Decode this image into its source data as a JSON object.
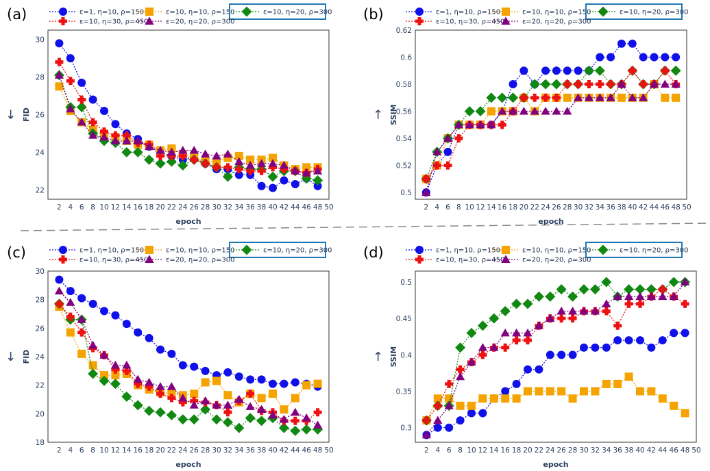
{
  "figure": {
    "series_styles": [
      {
        "color": "#1010e8",
        "marker": "circle"
      },
      {
        "color": "#f5a300",
        "marker": "square"
      },
      {
        "color": "#118811",
        "marker": "diamond"
      },
      {
        "color": "#ee1111",
        "marker": "cross"
      },
      {
        "color": "#800080",
        "marker": "triangle-up"
      }
    ],
    "highlight_box_color": "#1f77b4",
    "divider_color": "#888888"
  },
  "chart_data": [
    {
      "panel": "(a)",
      "type": "line",
      "ylabel": "FID",
      "xlabel": "epoch",
      "direction_arrow": "↓",
      "legend_labels": [
        "ε=1, η=10, ρ=150",
        "ε=10, η=10, ρ=150",
        "ε=10, η=20, ρ=300",
        "ε=10, η=30, ρ=450",
        "ε=20, η=20, ρ=300"
      ],
      "highlighted_legend_entry": "ε=10, η=20, ρ=300",
      "xlim": [
        0,
        50
      ],
      "ylim": [
        21.5,
        30.5
      ],
      "x_ticks": [
        "2",
        "4",
        "6",
        "8",
        "10",
        "12",
        "14",
        "16",
        "18",
        "20",
        "22",
        "24",
        "26",
        "28",
        "30",
        "32",
        "34",
        "36",
        "38",
        "40",
        "42",
        "44",
        "46",
        "48",
        "50"
      ],
      "y_ticks": [
        "22",
        "24",
        "26",
        "28",
        "30"
      ],
      "x": [
        2,
        4,
        6,
        8,
        10,
        12,
        14,
        16,
        18,
        20,
        22,
        24,
        26,
        28,
        30,
        32,
        34,
        36,
        38,
        40,
        42,
        44,
        46,
        48
      ],
      "series": [
        {
          "name": "ε=1, η=10, ρ=150",
          "values": [
            29.8,
            29.0,
            27.7,
            26.8,
            26.2,
            25.5,
            25.0,
            24.7,
            24.3,
            24.0,
            23.8,
            23.6,
            23.7,
            23.4,
            23.1,
            23.1,
            22.8,
            22.8,
            22.2,
            22.1,
            22.5,
            22.3,
            22.6,
            22.2
          ]
        },
        {
          "name": "ε=10, η=10, ρ=150",
          "values": [
            27.5,
            26.2,
            25.6,
            25.2,
            24.9,
            24.8,
            24.6,
            24.4,
            24.4,
            24.1,
            24.2,
            23.9,
            23.7,
            23.5,
            23.5,
            23.7,
            23.8,
            23.6,
            23.6,
            23.7,
            23.3,
            23.1,
            23.2,
            23.2
          ]
        },
        {
          "name": "ε=10, η=20, ρ=300",
          "values": [
            28.1,
            26.4,
            26.4,
            25.0,
            24.6,
            24.5,
            24.0,
            24.0,
            23.6,
            23.4,
            23.5,
            23.3,
            23.6,
            23.4,
            23.2,
            22.7,
            23.2,
            23.1,
            23.1,
            22.7,
            23.0,
            23.0,
            22.6,
            22.5
          ]
        },
        {
          "name": "ε=10, η=30, ρ=450",
          "values": [
            28.8,
            27.8,
            26.8,
            25.6,
            25.1,
            24.9,
            24.9,
            24.5,
            24.4,
            23.8,
            23.8,
            23.8,
            23.6,
            23.4,
            23.2,
            23.2,
            23.1,
            23.0,
            23.0,
            23.2,
            23.1,
            23.0,
            22.9,
            23.1
          ]
        },
        {
          "name": "ε=20, η=20, ρ=300",
          "values": [
            28.1,
            26.3,
            25.6,
            24.9,
            24.8,
            24.6,
            24.6,
            24.6,
            24.3,
            24.1,
            24.0,
            24.1,
            24.1,
            23.9,
            23.8,
            23.9,
            23.5,
            23.3,
            23.4,
            23.4,
            23.3,
            23.0,
            22.9,
            23.0
          ]
        }
      ]
    },
    {
      "panel": "(b)",
      "type": "line",
      "ylabel": "SSIM",
      "xlabel": "epoch",
      "direction_arrow": "↑",
      "legend_labels": [
        "ε=1, η=10, ρ=150",
        "ε=10, η=10, ρ=150",
        "ε=10, η=20, ρ=300",
        "ε=10, η=30, ρ=450",
        "ε=20, η=20, ρ=300"
      ],
      "highlighted_legend_entry": "ε=10, η=20, ρ=300",
      "xlim": [
        0,
        50
      ],
      "ylim": [
        0.495,
        0.62
      ],
      "x_ticks": [
        "2",
        "4",
        "6",
        "8",
        "10",
        "12",
        "14",
        "16",
        "18",
        "20",
        "22",
        "24",
        "26",
        "28",
        "30",
        "32",
        "34",
        "36",
        "38",
        "40",
        "42",
        "44",
        "46",
        "48",
        "50"
      ],
      "y_ticks": [
        "0.5",
        "0.52",
        "0.54",
        "0.56",
        "0.58",
        "0.6",
        "0.62"
      ],
      "x": [
        2,
        4,
        6,
        8,
        10,
        12,
        14,
        16,
        18,
        20,
        22,
        24,
        26,
        28,
        30,
        32,
        34,
        36,
        38,
        40,
        42,
        44,
        46,
        48
      ],
      "series": [
        {
          "name": "ε=1, η=10, ρ=150",
          "values": [
            0.5,
            0.52,
            0.53,
            0.55,
            0.55,
            0.55,
            0.55,
            0.56,
            0.58,
            0.59,
            0.58,
            0.59,
            0.59,
            0.59,
            0.59,
            0.59,
            0.6,
            0.6,
            0.61,
            0.61,
            0.6,
            0.6,
            0.6,
            0.6
          ]
        },
        {
          "name": "ε=10, η=10, ρ=150",
          "values": [
            0.51,
            0.52,
            0.54,
            0.55,
            0.55,
            0.55,
            0.56,
            0.56,
            0.56,
            0.57,
            0.56,
            0.57,
            0.57,
            0.57,
            0.57,
            0.57,
            0.57,
            0.57,
            0.57,
            0.57,
            0.57,
            0.58,
            0.57,
            0.57
          ]
        },
        {
          "name": "ε=10, η=20, ρ=300",
          "values": [
            0.51,
            0.53,
            0.54,
            0.55,
            0.56,
            0.56,
            0.57,
            0.57,
            0.57,
            0.57,
            0.58,
            0.58,
            0.58,
            0.58,
            0.58,
            0.59,
            0.59,
            0.58,
            0.58,
            0.59,
            0.58,
            0.58,
            0.59,
            0.59
          ]
        },
        {
          "name": "ε=10, η=30, ρ=450",
          "values": [
            0.51,
            0.52,
            0.52,
            0.54,
            0.55,
            0.55,
            0.55,
            0.55,
            0.56,
            0.57,
            0.57,
            0.57,
            0.57,
            0.58,
            0.58,
            0.58,
            0.58,
            0.58,
            0.58,
            0.59,
            0.58,
            0.58,
            0.59,
            0.58
          ]
        },
        {
          "name": "ε=20, η=20, ρ=300",
          "values": [
            0.5,
            0.53,
            0.54,
            0.55,
            0.55,
            0.55,
            0.55,
            0.56,
            0.56,
            0.56,
            0.56,
            0.56,
            0.56,
            0.56,
            0.57,
            0.57,
            0.57,
            0.57,
            0.58,
            0.57,
            0.57,
            0.58,
            0.58,
            0.58
          ]
        }
      ]
    },
    {
      "panel": "(c)",
      "type": "line",
      "ylabel": "FID",
      "xlabel": "epoch",
      "direction_arrow": "↓",
      "legend_labels": [
        "ε=1, η=10, ρ=150",
        "ε=10, η=10, ρ=150",
        "ε=10, η=20, ρ=300",
        "ε=10, η=30, ρ=450",
        "ε=20, η=20, ρ=300"
      ],
      "highlighted_legend_entry": "ε=10, η=20, ρ=300",
      "xlim": [
        0,
        50
      ],
      "ylim": [
        18,
        30
      ],
      "x_ticks": [
        "2",
        "4",
        "6",
        "8",
        "10",
        "12",
        "14",
        "16",
        "18",
        "20",
        "22",
        "24",
        "26",
        "28",
        "30",
        "32",
        "34",
        "36",
        "38",
        "40",
        "42",
        "44",
        "46",
        "48",
        "50"
      ],
      "y_ticks": [
        "18",
        "20",
        "22",
        "24",
        "26",
        "28",
        "30"
      ],
      "x": [
        2,
        4,
        6,
        8,
        10,
        12,
        14,
        16,
        18,
        20,
        22,
        24,
        26,
        28,
        30,
        32,
        34,
        36,
        38,
        40,
        42,
        44,
        46,
        48
      ],
      "series": [
        {
          "name": "ε=1, η=10, ρ=150",
          "values": [
            29.4,
            28.6,
            28.1,
            27.7,
            27.2,
            26.9,
            26.3,
            25.7,
            25.3,
            24.5,
            24.2,
            23.4,
            23.3,
            23.0,
            22.7,
            22.9,
            22.6,
            22.4,
            22.4,
            22.1,
            22.1,
            22.2,
            22.1,
            21.9
          ]
        },
        {
          "name": "ε=10, η=10, ρ=150",
          "values": [
            27.5,
            25.7,
            24.2,
            23.4,
            22.7,
            22.7,
            22.8,
            22.0,
            21.7,
            21.5,
            21.4,
            21.3,
            21.4,
            22.2,
            22.3,
            21.3,
            20.8,
            21.4,
            21.1,
            21.4,
            20.3,
            21.1,
            22.0,
            22.1
          ]
        },
        {
          "name": "ε=10, η=20, ρ=300",
          "values": [
            27.7,
            26.6,
            26.6,
            22.8,
            22.3,
            22.1,
            21.2,
            20.6,
            20.2,
            20.1,
            19.9,
            19.6,
            19.6,
            20.3,
            19.6,
            19.4,
            19.0,
            19.7,
            19.5,
            19.7,
            19.0,
            18.8,
            18.9,
            18.9
          ]
        },
        {
          "name": "ε=10, η=30, ρ=450",
          "values": [
            27.7,
            26.8,
            25.7,
            24.6,
            24.1,
            23.1,
            23.0,
            22.1,
            21.9,
            21.4,
            21.1,
            20.8,
            20.9,
            20.8,
            20.6,
            20.1,
            20.9,
            21.4,
            20.2,
            20.1,
            19.5,
            19.5,
            19.5,
            20.1
          ]
        },
        {
          "name": "ε=20, η=20, ρ=300",
          "values": [
            28.6,
            27.8,
            26.6,
            24.8,
            24.1,
            23.4,
            23.4,
            22.4,
            22.2,
            21.9,
            21.9,
            21.1,
            20.6,
            20.9,
            20.6,
            20.6,
            21.0,
            20.5,
            20.3,
            19.9,
            19.6,
            20.1,
            19.7,
            19.2
          ]
        }
      ]
    },
    {
      "panel": "(d)",
      "type": "line",
      "ylabel": "SSIM",
      "xlabel": "epoch",
      "direction_arrow": "↑",
      "legend_labels": [
        "ε=1, η=10, ρ=150",
        "ε=10, η=10, ρ=150",
        "ε=10, η=20, ρ=300",
        "ε=10, η=30, ρ=450",
        "ε=20, η=20, ρ=300"
      ],
      "highlighted_legend_entry": "ε=10, η=20, ρ=300",
      "xlim": [
        0,
        50
      ],
      "ylim": [
        0.28,
        0.515
      ],
      "x_ticks": [
        "2",
        "4",
        "6",
        "8",
        "10",
        "12",
        "14",
        "16",
        "18",
        "20",
        "22",
        "24",
        "26",
        "28",
        "30",
        "32",
        "34",
        "36",
        "38",
        "40",
        "42",
        "44",
        "46",
        "48",
        "50"
      ],
      "y_ticks": [
        "0.3",
        "0.35",
        "0.4",
        "0.45",
        "0.5"
      ],
      "x": [
        2,
        4,
        6,
        8,
        10,
        12,
        14,
        16,
        18,
        20,
        22,
        24,
        26,
        28,
        30,
        32,
        34,
        36,
        38,
        40,
        42,
        44,
        46,
        48
      ],
      "series": [
        {
          "name": "ε=1, η=10, ρ=150",
          "values": [
            0.29,
            0.3,
            0.3,
            0.31,
            0.32,
            0.32,
            0.34,
            0.35,
            0.36,
            0.38,
            0.38,
            0.4,
            0.4,
            0.4,
            0.41,
            0.41,
            0.41,
            0.42,
            0.42,
            0.42,
            0.41,
            0.42,
            0.43,
            0.43
          ]
        },
        {
          "name": "ε=10, η=10, ρ=150",
          "values": [
            0.31,
            0.34,
            0.34,
            0.33,
            0.33,
            0.34,
            0.34,
            0.34,
            0.34,
            0.35,
            0.35,
            0.35,
            0.35,
            0.34,
            0.35,
            0.35,
            0.36,
            0.36,
            0.37,
            0.35,
            0.35,
            0.34,
            0.33,
            0.32
          ]
        },
        {
          "name": "ε=10, η=20, ρ=300",
          "values": [
            0.31,
            0.33,
            0.33,
            0.41,
            0.43,
            0.44,
            0.45,
            0.46,
            0.47,
            0.47,
            0.48,
            0.48,
            0.49,
            0.48,
            0.49,
            0.49,
            0.5,
            0.48,
            0.49,
            0.49,
            0.49,
            0.49,
            0.5,
            0.5
          ]
        },
        {
          "name": "ε=10, η=30, ρ=450",
          "values": [
            0.31,
            0.33,
            0.36,
            0.38,
            0.39,
            0.4,
            0.41,
            0.41,
            0.42,
            0.42,
            0.44,
            0.45,
            0.45,
            0.45,
            0.46,
            0.46,
            0.46,
            0.44,
            0.47,
            0.47,
            0.48,
            0.49,
            0.48,
            0.47
          ]
        },
        {
          "name": "ε=20, η=20, ρ=300",
          "values": [
            0.29,
            0.31,
            0.33,
            0.37,
            0.39,
            0.41,
            0.41,
            0.43,
            0.43,
            0.43,
            0.44,
            0.45,
            0.46,
            0.46,
            0.46,
            0.46,
            0.47,
            0.48,
            0.48,
            0.48,
            0.48,
            0.48,
            0.48,
            0.5
          ]
        }
      ]
    }
  ]
}
